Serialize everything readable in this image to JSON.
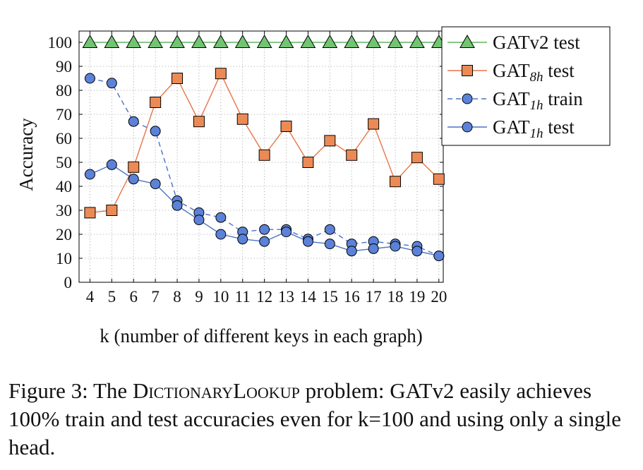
{
  "chart_data": {
    "type": "line",
    "ylabel": "Accuracy",
    "xlabel": "k (number of different keys in each graph)",
    "x": [
      4,
      5,
      6,
      7,
      8,
      9,
      10,
      11,
      12,
      13,
      14,
      15,
      16,
      17,
      18,
      19,
      20
    ],
    "ylim": [
      0,
      100
    ],
    "yticks": [
      0,
      10,
      20,
      30,
      40,
      50,
      60,
      70,
      80,
      90,
      100
    ],
    "grid": true,
    "legend_position": "top-right",
    "series": [
      {
        "name": "GATv2 test",
        "marker": "triangle",
        "style": "solid",
        "color": "#5cb85c",
        "marker_fill": "#72c472",
        "values": [
          100,
          100,
          100,
          100,
          100,
          100,
          100,
          100,
          100,
          100,
          100,
          100,
          100,
          100,
          100,
          100,
          100
        ]
      },
      {
        "name": "GAT8h test",
        "name_base": "GAT",
        "name_sub": "8h",
        "name_rest": " test",
        "marker": "square",
        "style": "solid",
        "color": "#e8744a",
        "marker_fill": "#ec8a55",
        "values": [
          29,
          30,
          48,
          75,
          85,
          67,
          87,
          68,
          53,
          65,
          50,
          59,
          53,
          66,
          42,
          52,
          43
        ]
      },
      {
        "name": "GAT1h train",
        "name_base": "GAT",
        "name_sub": "1h",
        "name_rest": " train",
        "marker": "circle",
        "style": "dashed",
        "color": "#4b72c4",
        "marker_fill": "#5b82d8",
        "values": [
          85,
          83,
          67,
          63,
          34,
          29,
          27,
          21,
          22,
          22,
          18,
          22,
          16,
          17,
          16,
          15,
          11
        ]
      },
      {
        "name": "GAT1h test",
        "name_base": "GAT",
        "name_sub": "1h",
        "name_rest": " test",
        "marker": "circle",
        "style": "solid",
        "color": "#4b72c4",
        "marker_fill": "#5b82d8",
        "values": [
          45,
          49,
          43,
          41,
          32,
          26,
          20,
          18,
          17,
          21,
          17,
          16,
          13,
          14,
          15,
          13,
          11
        ]
      }
    ]
  },
  "caption": {
    "prefix": "Figure 3: The ",
    "smallcaps": "DictionaryLookup",
    "suffix": " problem: GATv2 easily achieves 100% train and test accuracies even for k=100 and using only a single head."
  }
}
